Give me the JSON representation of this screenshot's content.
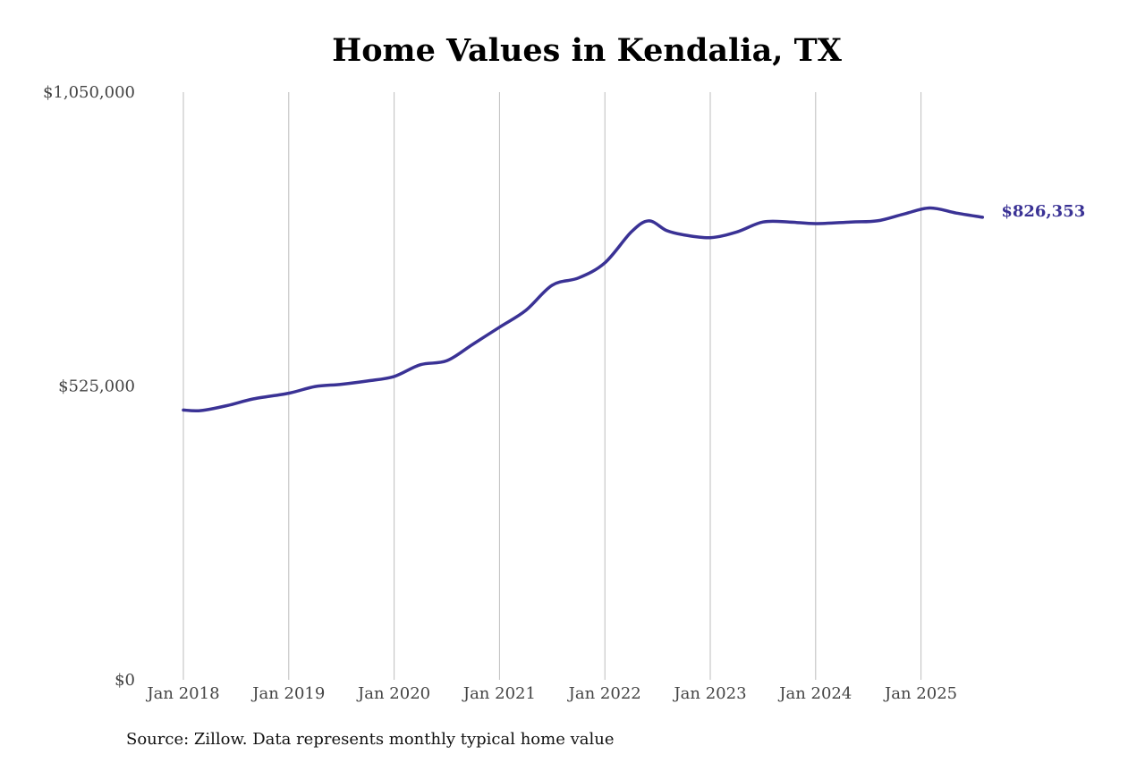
{
  "chart_data": {
    "type": "line",
    "title": "Home Values in Kendalia, TX",
    "xlabel": "",
    "ylabel": "",
    "ylim": [
      0,
      1050000
    ],
    "y_ticks": [
      {
        "value": 0,
        "label": "$0"
      },
      {
        "value": 525000,
        "label": "$525,000"
      },
      {
        "value": 1050000,
        "label": "$1,050,000"
      }
    ],
    "x_ticks": [
      "Jan 2018",
      "Jan 2019",
      "Jan 2020",
      "Jan 2021",
      "Jan 2022",
      "Jan 2023",
      "Jan 2024",
      "Jan 2025"
    ],
    "x_range": [
      "2018-01",
      "2025-08"
    ],
    "grid": "vertical lines at x ticks",
    "series": [
      {
        "color": "#3a3295",
        "end_label": "$826,353",
        "points": [
          [
            "2018-01",
            482000
          ],
          [
            "2018-03",
            481000
          ],
          [
            "2018-06",
            490000
          ],
          [
            "2018-09",
            502000
          ],
          [
            "2019-01",
            512000
          ],
          [
            "2019-04",
            524000
          ],
          [
            "2019-07",
            528000
          ],
          [
            "2019-10",
            534000
          ],
          [
            "2020-01",
            542000
          ],
          [
            "2020-04",
            563000
          ],
          [
            "2020-07",
            570000
          ],
          [
            "2020-10",
            600000
          ],
          [
            "2021-01",
            630000
          ],
          [
            "2021-04",
            660000
          ],
          [
            "2021-07",
            705000
          ],
          [
            "2021-10",
            718000
          ],
          [
            "2022-01",
            745000
          ],
          [
            "2022-04",
            800000
          ],
          [
            "2022-06",
            820000
          ],
          [
            "2022-08",
            803000
          ],
          [
            "2022-10",
            795000
          ],
          [
            "2023-01",
            790000
          ],
          [
            "2023-04",
            800000
          ],
          [
            "2023-07",
            818000
          ],
          [
            "2023-10",
            818000
          ],
          [
            "2024-01",
            815000
          ],
          [
            "2024-05",
            818000
          ],
          [
            "2024-08",
            820000
          ],
          [
            "2024-11",
            832000
          ],
          [
            "2025-02",
            843000
          ],
          [
            "2025-05",
            834000
          ],
          [
            "2025-08",
            826353
          ]
        ]
      }
    ]
  },
  "footer": {
    "source": "Source: Zillow. Data represents monthly typical home value"
  }
}
